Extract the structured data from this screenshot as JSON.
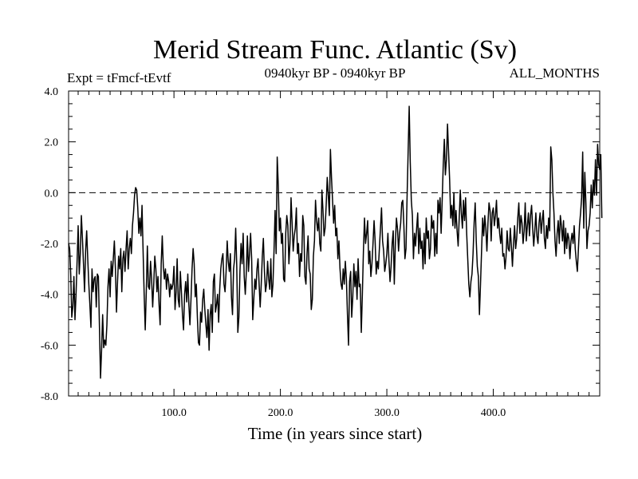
{
  "chart_data": {
    "type": "line",
    "title": "Merid Stream Func. Atlantic (Sv)",
    "subtitle_left": "Expt = tFmcf-tEvtf",
    "subtitle_center": "0940kyr BP - 0940kyr BP",
    "subtitle_right": "ALL_MONTHS",
    "xlabel": "Time (in years since start)",
    "ylabel": "",
    "xlim": [
      1,
      500
    ],
    "ylim": [
      -8,
      4
    ],
    "x_ticks": [
      100,
      200,
      300,
      400
    ],
    "x_tick_labels": [
      "100.0",
      "200.0",
      "300.0",
      "400.0"
    ],
    "y_ticks": [
      -8,
      -6,
      -4,
      -2,
      0,
      2,
      4
    ],
    "y_tick_labels": [
      "-8.0",
      "-6.0",
      "-4.0",
      "-2.0",
      "0.0",
      "2.0",
      "4.0"
    ],
    "reference_line_y": 0,
    "series": [
      {
        "name": "Merid Stream Func. Atlantic",
        "x_start": 1,
        "x_step": 1,
        "values": [
          -2.0,
          -2.2,
          -3.2,
          -4.9,
          -4.5,
          -3.3,
          -5.0,
          -4.0,
          -2.7,
          -1.3,
          -3.2,
          -2.4,
          -0.9,
          -1.8,
          -2.8,
          -3.9,
          -2.3,
          -1.5,
          -2.6,
          -3.6,
          -4.4,
          -5.3,
          -3.0,
          -3.9,
          -3.4,
          -3.3,
          -4.5,
          -3.2,
          -3.3,
          -5.3,
          -7.3,
          -6.2,
          -4.8,
          -6.1,
          -5.8,
          -6.0,
          -5.2,
          -3.7,
          -3.0,
          -4.1,
          -2.7,
          -3.3,
          -2.6,
          -1.9,
          -3.0,
          -4.7,
          -3.5,
          -2.5,
          -3.0,
          -2.2,
          -3.9,
          -2.6,
          -2.3,
          -3.1,
          -2.2,
          -1.5,
          -3.0,
          -2.2,
          -1.8,
          -2.4,
          -1.3,
          -0.8,
          -0.1,
          0.2,
          0.1,
          -0.6,
          -1.6,
          -1.0,
          -1.7,
          -0.5,
          -2.3,
          -4.0,
          -5.4,
          -3.9,
          -2.1,
          -3.7,
          -3.8,
          -2.7,
          -3.4,
          -4.5,
          -3.6,
          -2.5,
          -3.0,
          -3.9,
          -3.3,
          -4.4,
          -5.2,
          -2.8,
          -1.7,
          -2.9,
          -3.4,
          -3.0,
          -3.8,
          -3.2,
          -3.5,
          -4.1,
          -3.6,
          -3.8,
          -3.6,
          -2.9,
          -4.6,
          -3.9,
          -2.6,
          -4.2,
          -4.5,
          -3.1,
          -3.9,
          -4.8,
          -5.4,
          -4.0,
          -3.5,
          -4.3,
          -3.2,
          -4.4,
          -5.2,
          -4.2,
          -3.0,
          -2.2,
          -2.8,
          -4.1,
          -3.6,
          -4.9,
          -5.9,
          -6.0,
          -4.7,
          -5.1,
          -4.2,
          -3.8,
          -4.6,
          -5.2,
          -5.7,
          -4.6,
          -6.2,
          -4.8,
          -4.4,
          -5.5,
          -3.5,
          -3.2,
          -4.7,
          -4.4,
          -4.0,
          -5.1,
          -3.8,
          -3.0,
          -2.6,
          -2.4,
          -3.6,
          -3.9,
          -3.1,
          -1.9,
          -2.7,
          -3.1,
          -2.4,
          -4.1,
          -4.8,
          -3.0,
          -2.6,
          -1.4,
          -2.9,
          -5.5,
          -4.9,
          -3.1,
          -2.0,
          -2.8,
          -1.6,
          -3.3,
          -4.0,
          -3.1,
          -1.7,
          -3.1,
          -2.4,
          -1.6,
          -2.6,
          -5.0,
          -4.2,
          -3.4,
          -3.8,
          -3.0,
          -2.6,
          -3.6,
          -4.5,
          -3.6,
          -2.5,
          -1.8,
          -3.1,
          -3.9,
          -3.6,
          -2.7,
          -3.4,
          -3.8,
          -2.6,
          -4.1,
          -3.6,
          -2.3,
          -0.7,
          -2.4,
          1.4,
          0.3,
          -1.5,
          -1.0,
          -2.0,
          -1.6,
          -3.4,
          -3.5,
          -1.6,
          -0.9,
          -1.3,
          -2.8,
          -2.0,
          -0.2,
          -1.2,
          -2.3,
          -1.7,
          -1.4,
          -0.6,
          -2.4,
          -2.0,
          -3.3,
          -2.4,
          -2.7,
          -0.9,
          -1.3,
          -3.3,
          -3.6,
          -2.4,
          -1.7,
          -3.0,
          -3.2,
          -4.6,
          -4.2,
          -2.5,
          -1.9,
          -0.3,
          -1.1,
          -1.5,
          -1.0,
          -2.0,
          -2.3,
          0.1,
          -0.7,
          -1.7,
          -1.4,
          -0.5,
          0.6,
          -0.1,
          -0.9,
          1.7,
          0.6,
          -0.3,
          -1.2,
          -0.5,
          -1.7,
          -1.4,
          -2.6,
          -1.9,
          -3.0,
          -3.6,
          -3.8,
          -3.0,
          -3.6,
          -2.7,
          -3.4,
          -4.8,
          -6.0,
          -3.5,
          -3.1,
          -4.9,
          -4.1,
          -2.8,
          -3.7,
          -3.1,
          -4.2,
          -2.6,
          -3.7,
          -3.6,
          -5.5,
          -4.0,
          -2.3,
          -1.0,
          -2.0,
          -1.6,
          -1.1,
          -2.8,
          -2.3,
          -3.3,
          -2.8,
          -2.0,
          -1.1,
          -1.9,
          -3.2,
          -2.7,
          -3.0,
          -2.2,
          -1.4,
          -0.6,
          -1.9,
          -2.3,
          -3.1,
          -2.8,
          -2.4,
          -1.6,
          -2.7,
          -3.5,
          -2.9,
          -2.0,
          -1.5,
          -3.6,
          -2.0,
          -1.0,
          -1.4,
          -2.3,
          -1.6,
          -1.2,
          -0.4,
          -0.3,
          -1.3,
          -2.6,
          -2.2,
          -0.2,
          1.6,
          3.4,
          1.2,
          -0.3,
          -0.9,
          -2.6,
          -1.6,
          -2.1,
          -1.4,
          -0.8,
          -2.4,
          -1.4,
          -2.2,
          -1.9,
          -3.0,
          -1.6,
          -2.8,
          -1.0,
          -1.8,
          -1.5,
          -2.6,
          -2.2,
          -0.9,
          -1.4,
          -1.1,
          -2.5,
          -1.6,
          -2.4,
          -0.3,
          -0.8,
          -0.2,
          -1.6,
          -0.3,
          1.1,
          2.1,
          0.7,
          1.3,
          2.7,
          1.6,
          0.5,
          -1.0,
          -0.5,
          -1.3,
          0.0,
          -1.4,
          -0.7,
          -1.5,
          -2.1,
          -1.0,
          0.1,
          -0.8,
          -1.4,
          -0.3,
          -1.1,
          -0.2,
          -1.6,
          -2.6,
          -3.6,
          -4.1,
          -3.5,
          -3.2,
          -2.4,
          -1.2,
          -0.4,
          -1.9,
          -2.9,
          -3.3,
          -4.8,
          -3.6,
          -2.3,
          -1.0,
          -1.7,
          -0.9,
          -1.4,
          -2.3,
          -1.2,
          -0.4,
          -0.7,
          -1.9,
          -0.8,
          -0.6,
          -1.3,
          -0.9,
          -0.3,
          -1.4,
          -1.0,
          -1.6,
          -2.0,
          -1.4,
          -2.5,
          -2.4,
          -3.0,
          -2.5,
          -1.5,
          -2.2,
          -2.3,
          -1.4,
          -2.1,
          -2.9,
          -2.0,
          -1.3,
          -2.2,
          -1.8,
          -1.0,
          -0.4,
          -1.6,
          -0.9,
          -1.2,
          -2.0,
          -1.5,
          -0.4,
          -1.9,
          -1.3,
          -0.8,
          -1.7,
          -0.9,
          -0.5,
          -1.4,
          -2.1,
          -1.5,
          -0.8,
          -1.7,
          -2.0,
          -1.2,
          -0.8,
          -1.6,
          -1.1,
          -0.7,
          -1.8,
          -2.2,
          -1.3,
          -1.8,
          -1.0,
          -1.5,
          1.8,
          1.3,
          0.0,
          -0.8,
          -1.9,
          -2.5,
          -1.6,
          -1.1,
          -2.0,
          -0.9,
          -1.3,
          -1.9,
          -1.1,
          -2.4,
          -1.4,
          -2.2,
          -1.6,
          -1.8,
          -2.6,
          -1.9,
          -1.6,
          -2.0,
          -1.3,
          -2.2,
          -2.7,
          -3.1,
          -2.2,
          -1.3,
          -0.8,
          -0.2,
          1.6,
          -1.4,
          0.8,
          -0.4,
          -2.2,
          -1.5,
          -1.3,
          -0.8,
          0.3,
          -0.6,
          0.5,
          -0.1,
          1.3,
          -0.1,
          1.9,
          1.1,
          0.9,
          1.5,
          -1.0
        ]
      }
    ]
  }
}
